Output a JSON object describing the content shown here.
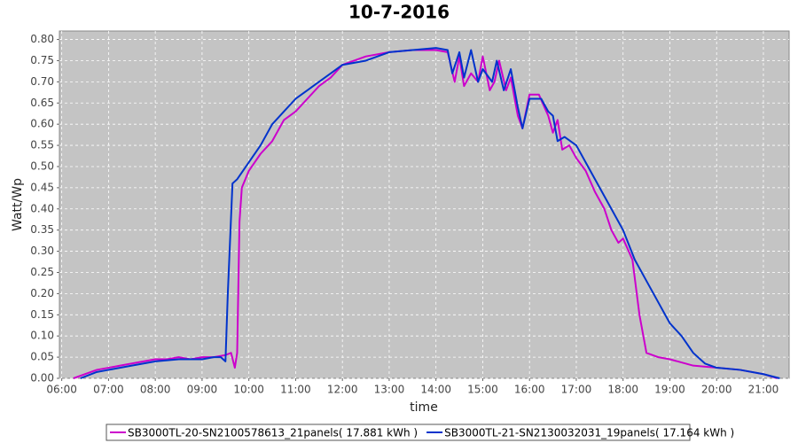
{
  "chart_data": {
    "type": "line",
    "title": "10-7-2016",
    "x_label": "time",
    "y_label": "Watt/Wp",
    "grid": true,
    "legend": "bottom",
    "xlim": [
      5.95,
      21.55
    ],
    "ylim": [
      0,
      0.82
    ],
    "xticks": [
      {
        "value": 6,
        "label": "06:00"
      },
      {
        "value": 7,
        "label": "07:00"
      },
      {
        "value": 8,
        "label": "08:00"
      },
      {
        "value": 9,
        "label": "09:00"
      },
      {
        "value": 10,
        "label": "10:00"
      },
      {
        "value": 11,
        "label": "11:00"
      },
      {
        "value": 12,
        "label": "12:00"
      },
      {
        "value": 13,
        "label": "13:00"
      },
      {
        "value": 14,
        "label": "14:00"
      },
      {
        "value": 15,
        "label": "15:00"
      },
      {
        "value": 16,
        "label": "16:00"
      },
      {
        "value": 17,
        "label": "17:00"
      },
      {
        "value": 18,
        "label": "18:00"
      },
      {
        "value": 19,
        "label": "19:00"
      },
      {
        "value": 20,
        "label": "20:00"
      },
      {
        "value": 21,
        "label": "21:00"
      }
    ],
    "yticks": [
      {
        "value": 0,
        "label": "0.00"
      },
      {
        "value": 0.05,
        "label": "0.05"
      },
      {
        "value": 0.1,
        "label": "0.10"
      },
      {
        "value": 0.15,
        "label": "0.15"
      },
      {
        "value": 0.2,
        "label": "0.20"
      },
      {
        "value": 0.25,
        "label": "0.25"
      },
      {
        "value": 0.3,
        "label": "0.30"
      },
      {
        "value": 0.35,
        "label": "0.35"
      },
      {
        "value": 0.4,
        "label": "0.40"
      },
      {
        "value": 0.45,
        "label": "0.45"
      },
      {
        "value": 0.5,
        "label": "0.50"
      },
      {
        "value": 0.55,
        "label": "0.55"
      },
      {
        "value": 0.6,
        "label": "0.60"
      },
      {
        "value": 0.65,
        "label": "0.65"
      },
      {
        "value": 0.7,
        "label": "0.70"
      },
      {
        "value": 0.75,
        "label": "0.75"
      },
      {
        "value": 0.8,
        "label": "0.80"
      }
    ],
    "series": [
      {
        "name": "SB3000TL-20-SN2100578613_21panels( 17.881 kWh )",
        "color": "#cc00cc",
        "x": [
          6.25,
          6.5,
          6.75,
          7.0,
          7.25,
          7.5,
          7.75,
          8.0,
          8.25,
          8.5,
          8.75,
          9.0,
          9.25,
          9.5,
          9.62,
          9.7,
          9.75,
          9.8,
          9.85,
          10.0,
          10.25,
          10.5,
          10.75,
          11.0,
          11.25,
          11.5,
          11.75,
          12.0,
          12.5,
          13.0,
          13.5,
          14.0,
          14.25,
          14.4,
          14.5,
          14.6,
          14.75,
          14.9,
          15.0,
          15.15,
          15.25,
          15.35,
          15.5,
          15.6,
          15.75,
          15.85,
          16.0,
          16.2,
          16.4,
          16.5,
          16.6,
          16.7,
          16.85,
          17.0,
          17.2,
          17.4,
          17.6,
          17.75,
          17.9,
          18.0,
          18.2,
          18.35,
          18.5,
          18.75,
          19.0,
          19.5,
          20.0,
          20.5,
          21.0,
          21.3
        ],
        "values": [
          0.0,
          0.01,
          0.02,
          0.025,
          0.03,
          0.035,
          0.04,
          0.045,
          0.045,
          0.05,
          0.045,
          0.05,
          0.05,
          0.055,
          0.06,
          0.025,
          0.06,
          0.37,
          0.45,
          0.49,
          0.53,
          0.56,
          0.61,
          0.63,
          0.66,
          0.69,
          0.71,
          0.74,
          0.76,
          0.77,
          0.775,
          0.775,
          0.77,
          0.7,
          0.76,
          0.69,
          0.72,
          0.7,
          0.76,
          0.68,
          0.7,
          0.75,
          0.68,
          0.71,
          0.62,
          0.59,
          0.67,
          0.67,
          0.62,
          0.58,
          0.61,
          0.54,
          0.55,
          0.52,
          0.49,
          0.44,
          0.4,
          0.35,
          0.32,
          0.33,
          0.28,
          0.15,
          0.06,
          0.05,
          0.045,
          0.03,
          0.025,
          0.02,
          0.01,
          0.0
        ]
      },
      {
        "name": "SB3000TL-21-SN2130032031_19panels( 17.164 kWh )",
        "color": "#0033cc",
        "x": [
          6.4,
          6.75,
          7.0,
          7.5,
          8.0,
          8.5,
          9.0,
          9.25,
          9.4,
          9.5,
          9.55,
          9.65,
          9.75,
          10.0,
          10.25,
          10.5,
          10.75,
          11.0,
          11.25,
          11.5,
          11.75,
          12.0,
          12.5,
          13.0,
          13.5,
          14.0,
          14.25,
          14.35,
          14.5,
          14.6,
          14.75,
          14.9,
          15.0,
          15.2,
          15.3,
          15.45,
          15.6,
          15.75,
          15.85,
          16.0,
          16.25,
          16.4,
          16.5,
          16.6,
          16.75,
          17.0,
          17.25,
          17.5,
          17.75,
          18.0,
          18.25,
          18.5,
          18.75,
          19.0,
          19.25,
          19.5,
          19.75,
          20.0,
          20.5,
          21.0,
          21.35
        ],
        "values": [
          0.0,
          0.015,
          0.02,
          0.03,
          0.04,
          0.045,
          0.045,
          0.05,
          0.05,
          0.04,
          0.2,
          0.46,
          0.47,
          0.51,
          0.55,
          0.6,
          0.63,
          0.66,
          0.68,
          0.7,
          0.72,
          0.74,
          0.75,
          0.77,
          0.775,
          0.78,
          0.775,
          0.72,
          0.77,
          0.71,
          0.775,
          0.7,
          0.73,
          0.7,
          0.75,
          0.68,
          0.73,
          0.64,
          0.59,
          0.66,
          0.66,
          0.63,
          0.62,
          0.56,
          0.57,
          0.55,
          0.5,
          0.45,
          0.4,
          0.35,
          0.28,
          0.23,
          0.18,
          0.13,
          0.1,
          0.06,
          0.035,
          0.025,
          0.02,
          0.01,
          0.0
        ]
      }
    ]
  }
}
